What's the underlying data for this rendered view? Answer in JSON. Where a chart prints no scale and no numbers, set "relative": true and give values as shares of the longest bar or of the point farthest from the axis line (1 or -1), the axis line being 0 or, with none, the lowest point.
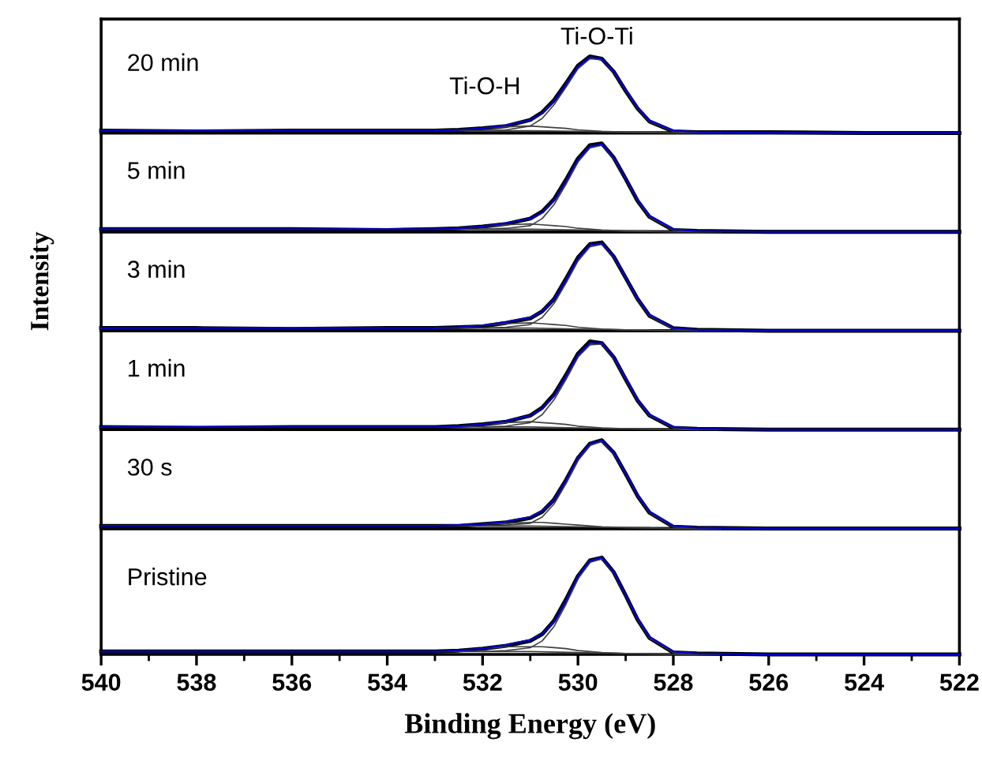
{
  "chart_data": [
    {
      "type": "line",
      "relative": true,
      "title": "20 min",
      "xlim": [
        540,
        522
      ],
      "tick_labels": false,
      "x": [
        540,
        538,
        536,
        534,
        533,
        532.5,
        532,
        531.5,
        531,
        530.75,
        530.5,
        530.25,
        530,
        529.75,
        529.5,
        529.25,
        529,
        528.75,
        528.5,
        528,
        527.5,
        526,
        524,
        522
      ],
      "annotations": [
        "Ti-O-Ti",
        "Ti-O-H"
      ],
      "series": [
        {
          "color": "#0000cc",
          "values": [
            0.03,
            0.03,
            0.03,
            0.03,
            0.03,
            0.04,
            0.06,
            0.1,
            0.17,
            0.26,
            0.42,
            0.64,
            0.87,
            0.99,
            0.97,
            0.8,
            0.56,
            0.33,
            0.16,
            0.03,
            0.01,
            0.0,
            0.0,
            0.0
          ]
        },
        {
          "color": "#000000",
          "values": [
            0.03,
            0.02,
            0.03,
            0.03,
            0.03,
            0.04,
            0.06,
            0.09,
            0.17,
            0.27,
            0.43,
            0.65,
            0.88,
            1.0,
            0.97,
            0.8,
            0.55,
            0.32,
            0.15,
            0.02,
            0.01,
            0.01,
            0.0,
            0.0
          ]
        },
        {
          "color": "#404040",
          "x": [
            532,
            531.5,
            531,
            530.75,
            530.5,
            530.25,
            530,
            529.75,
            529.5,
            529.25,
            529,
            528.75,
            528.5,
            528,
            527.5
          ],
          "values": [
            0.03,
            0.04,
            0.09,
            0.19,
            0.37,
            0.6,
            0.84,
            0.97,
            0.96,
            0.79,
            0.55,
            0.32,
            0.15,
            0.02,
            0.0
          ]
        },
        {
          "color": "#404040",
          "x": [
            533,
            532.5,
            532,
            531.5,
            531,
            530.75,
            530.5,
            530.25,
            530,
            529.5,
            529,
            528.5
          ],
          "values": [
            0.03,
            0.04,
            0.06,
            0.08,
            0.09,
            0.08,
            0.07,
            0.06,
            0.04,
            0.02,
            0.01,
            0.01
          ]
        },
        {
          "color": "#404040",
          "x": [
            533,
            531,
            530,
            529,
            528,
            527
          ],
          "values": [
            0.03,
            0.03,
            0.02,
            0.01,
            0.0,
            0.0
          ]
        }
      ]
    },
    {
      "type": "line",
      "relative": true,
      "title": "5 min",
      "xlim": [
        540,
        522
      ],
      "tick_labels": false,
      "x": [
        540,
        538,
        536,
        534,
        533,
        532.5,
        532,
        531.5,
        531,
        530.75,
        530.5,
        530.25,
        530,
        529.75,
        529.5,
        529.25,
        529,
        528.75,
        528.5,
        528,
        527.5,
        526,
        524,
        522
      ],
      "series": [
        {
          "color": "#0000cc",
          "values": [
            0.03,
            0.03,
            0.03,
            0.03,
            0.03,
            0.04,
            0.06,
            0.1,
            0.15,
            0.22,
            0.36,
            0.58,
            0.82,
            0.97,
            0.99,
            0.84,
            0.6,
            0.36,
            0.18,
            0.03,
            0.01,
            0.0,
            0.0,
            0.0
          ]
        },
        {
          "color": "#000000",
          "values": [
            0.03,
            0.03,
            0.03,
            0.02,
            0.03,
            0.04,
            0.06,
            0.09,
            0.15,
            0.23,
            0.37,
            0.59,
            0.83,
            0.98,
            1.0,
            0.84,
            0.6,
            0.35,
            0.17,
            0.02,
            0.01,
            0.0,
            0.0,
            0.0
          ]
        },
        {
          "color": "#404040",
          "x": [
            532,
            531.5,
            531,
            530.75,
            530.5,
            530.25,
            530,
            529.75,
            529.5,
            529.25,
            529,
            528.75,
            528.5,
            528,
            527.5
          ],
          "values": [
            0.03,
            0.04,
            0.07,
            0.15,
            0.31,
            0.54,
            0.79,
            0.95,
            0.98,
            0.83,
            0.6,
            0.35,
            0.17,
            0.02,
            0.0
          ]
        },
        {
          "color": "#404040",
          "x": [
            533,
            532.5,
            532,
            531.5,
            531,
            530.75,
            530.5,
            530.25,
            530,
            529.5,
            529,
            528.5
          ],
          "values": [
            0.03,
            0.04,
            0.06,
            0.08,
            0.09,
            0.08,
            0.07,
            0.06,
            0.04,
            0.02,
            0.01,
            0.01
          ]
        },
        {
          "color": "#404040",
          "x": [
            533,
            531,
            530,
            529,
            528,
            527
          ],
          "values": [
            0.03,
            0.03,
            0.02,
            0.01,
            0.0,
            0.0
          ]
        }
      ]
    },
    {
      "type": "line",
      "relative": true,
      "title": "3 min",
      "ylabel": "Intensity",
      "xlim": [
        540,
        522
      ],
      "tick_labels": false,
      "x": [
        540,
        538,
        536,
        534,
        533,
        532.5,
        532,
        531.5,
        531,
        530.75,
        530.5,
        530.25,
        530,
        529.75,
        529.5,
        529.25,
        529,
        528.75,
        528.5,
        528,
        527.5,
        526,
        524,
        522
      ],
      "series": [
        {
          "color": "#0000cc",
          "values": [
            0.03,
            0.03,
            0.03,
            0.03,
            0.03,
            0.04,
            0.06,
            0.1,
            0.15,
            0.22,
            0.36,
            0.58,
            0.82,
            0.97,
            0.99,
            0.84,
            0.6,
            0.36,
            0.18,
            0.03,
            0.01,
            0.0,
            0.0,
            0.0
          ]
        },
        {
          "color": "#000000",
          "values": [
            0.03,
            0.03,
            0.02,
            0.03,
            0.03,
            0.04,
            0.05,
            0.09,
            0.14,
            0.22,
            0.36,
            0.59,
            0.83,
            0.98,
            1.0,
            0.84,
            0.6,
            0.36,
            0.17,
            0.03,
            0.01,
            0.0,
            0.0,
            0.0
          ]
        },
        {
          "color": "#404040",
          "x": [
            532,
            531.5,
            531,
            530.75,
            530.5,
            530.25,
            530,
            529.75,
            529.5,
            529.25,
            529,
            528.75,
            528.5,
            528,
            527.5
          ],
          "values": [
            0.03,
            0.04,
            0.07,
            0.15,
            0.31,
            0.54,
            0.79,
            0.95,
            0.98,
            0.83,
            0.6,
            0.35,
            0.17,
            0.02,
            0.0
          ]
        },
        {
          "color": "#404040",
          "x": [
            533,
            532.5,
            532,
            531.5,
            531,
            530.75,
            530.5,
            530.25,
            530,
            529.5,
            529,
            528.5
          ],
          "values": [
            0.03,
            0.04,
            0.06,
            0.08,
            0.09,
            0.08,
            0.07,
            0.06,
            0.04,
            0.02,
            0.01,
            0.01
          ]
        },
        {
          "color": "#404040",
          "x": [
            533,
            531,
            530,
            529,
            528,
            527
          ],
          "values": [
            0.03,
            0.03,
            0.02,
            0.01,
            0.0,
            0.0
          ]
        }
      ]
    },
    {
      "type": "line",
      "relative": true,
      "title": "1 min",
      "xlim": [
        540,
        522
      ],
      "tick_labels": false,
      "x": [
        540,
        538,
        536,
        534,
        533,
        532.5,
        532,
        531.5,
        531,
        530.75,
        530.5,
        530.25,
        530,
        529.75,
        529.5,
        529.25,
        529,
        528.75,
        528.5,
        528,
        527.5,
        526,
        524,
        522
      ],
      "series": [
        {
          "color": "#0000cc",
          "values": [
            0.03,
            0.03,
            0.03,
            0.03,
            0.03,
            0.04,
            0.06,
            0.1,
            0.16,
            0.24,
            0.39,
            0.61,
            0.85,
            0.98,
            0.98,
            0.82,
            0.58,
            0.34,
            0.17,
            0.03,
            0.01,
            0.0,
            0.0,
            0.0
          ]
        },
        {
          "color": "#000000",
          "values": [
            0.03,
            0.02,
            0.03,
            0.03,
            0.03,
            0.04,
            0.06,
            0.09,
            0.16,
            0.25,
            0.4,
            0.62,
            0.86,
            1.0,
            0.98,
            0.82,
            0.57,
            0.33,
            0.16,
            0.02,
            0.01,
            0.0,
            0.0,
            0.0
          ]
        },
        {
          "color": "#404040",
          "x": [
            532,
            531.5,
            531,
            530.75,
            530.5,
            530.25,
            530,
            529.75,
            529.5,
            529.25,
            529,
            528.75,
            528.5,
            528,
            527.5
          ],
          "values": [
            0.03,
            0.04,
            0.08,
            0.17,
            0.34,
            0.57,
            0.82,
            0.96,
            0.97,
            0.81,
            0.57,
            0.33,
            0.16,
            0.02,
            0.0
          ]
        },
        {
          "color": "#404040",
          "x": [
            533,
            532.5,
            532,
            531.5,
            531,
            530.75,
            530.5,
            530.25,
            530,
            529.5,
            529,
            528.5
          ],
          "values": [
            0.03,
            0.04,
            0.06,
            0.08,
            0.09,
            0.08,
            0.07,
            0.06,
            0.04,
            0.02,
            0.01,
            0.01
          ]
        },
        {
          "color": "#404040",
          "x": [
            533,
            531,
            530,
            529,
            528,
            527
          ],
          "values": [
            0.03,
            0.03,
            0.02,
            0.01,
            0.0,
            0.0
          ]
        }
      ]
    },
    {
      "type": "line",
      "relative": true,
      "title": "30 s",
      "xlim": [
        540,
        522
      ],
      "tick_labels": false,
      "x": [
        540,
        538,
        536,
        534,
        533,
        532.5,
        532,
        531.5,
        531,
        530.75,
        530.5,
        530.25,
        530,
        529.75,
        529.5,
        529.25,
        529,
        528.75,
        528.5,
        528,
        527.5,
        526,
        524,
        522
      ],
      "series": [
        {
          "color": "#0000cc",
          "values": [
            0.03,
            0.03,
            0.03,
            0.03,
            0.03,
            0.04,
            0.05,
            0.08,
            0.13,
            0.2,
            0.33,
            0.55,
            0.8,
            0.96,
            1.0,
            0.86,
            0.62,
            0.38,
            0.19,
            0.03,
            0.01,
            0.0,
            0.0,
            0.0
          ]
        },
        {
          "color": "#000000",
          "values": [
            0.03,
            0.03,
            0.03,
            0.03,
            0.03,
            0.03,
            0.05,
            0.07,
            0.12,
            0.19,
            0.33,
            0.55,
            0.8,
            0.96,
            1.0,
            0.86,
            0.62,
            0.37,
            0.18,
            0.02,
            0.01,
            0.0,
            0.0,
            0.0
          ]
        },
        {
          "color": "#404040",
          "x": [
            532,
            531.5,
            531,
            530.75,
            530.5,
            530.25,
            530,
            529.75,
            529.5,
            529.25,
            529,
            528.75,
            528.5,
            528,
            527.5
          ],
          "values": [
            0.03,
            0.04,
            0.06,
            0.13,
            0.28,
            0.51,
            0.77,
            0.94,
            0.99,
            0.85,
            0.62,
            0.37,
            0.18,
            0.02,
            0.0
          ]
        },
        {
          "color": "#404040",
          "x": [
            533,
            532.5,
            532,
            531.5,
            531,
            530.75,
            530.5,
            530.25,
            530,
            529.5,
            529,
            528.5
          ],
          "values": [
            0.03,
            0.03,
            0.05,
            0.06,
            0.07,
            0.07,
            0.06,
            0.05,
            0.04,
            0.02,
            0.01,
            0.01
          ]
        },
        {
          "color": "#404040",
          "x": [
            533,
            531,
            530,
            529,
            528,
            527
          ],
          "values": [
            0.03,
            0.03,
            0.02,
            0.01,
            0.0,
            0.0
          ]
        }
      ]
    },
    {
      "type": "line",
      "relative": true,
      "title": "Pristine",
      "xlabel": "Binding Energy (eV)",
      "xlim": [
        540,
        522
      ],
      "tick_labels": "x",
      "xticks": [
        540,
        {
          "value": 539,
          "label": null
        },
        538,
        {
          "value": 537,
          "label": null
        },
        536,
        {
          "value": 535,
          "label": null
        },
        534,
        {
          "value": 533,
          "label": null
        },
        532,
        {
          "value": 531,
          "label": null
        },
        530,
        {
          "value": 529,
          "label": null
        },
        528,
        {
          "value": 527,
          "label": null
        },
        526,
        {
          "value": 525,
          "label": null
        },
        524,
        {
          "value": 523,
          "label": null
        },
        522
      ],
      "x": [
        540,
        538,
        536,
        534,
        533,
        532.5,
        532,
        531.5,
        531,
        530.75,
        530.5,
        530.25,
        530,
        529.75,
        529.5,
        529.25,
        529,
        528.75,
        528.5,
        528,
        527.5,
        526,
        524,
        522
      ],
      "series": [
        {
          "color": "#0000cc",
          "values": [
            0.03,
            0.03,
            0.03,
            0.03,
            0.03,
            0.04,
            0.06,
            0.1,
            0.15,
            0.21,
            0.34,
            0.56,
            0.81,
            0.97,
            1.0,
            0.85,
            0.61,
            0.37,
            0.18,
            0.03,
            0.01,
            0.0,
            0.0,
            0.0
          ]
        },
        {
          "color": "#000000",
          "values": [
            0.03,
            0.03,
            0.03,
            0.03,
            0.03,
            0.04,
            0.06,
            0.09,
            0.14,
            0.21,
            0.35,
            0.57,
            0.81,
            0.97,
            1.0,
            0.85,
            0.61,
            0.36,
            0.17,
            0.02,
            0.01,
            0.0,
            0.0,
            0.0
          ]
        },
        {
          "color": "#404040",
          "x": [
            532,
            531.5,
            531,
            530.75,
            530.5,
            530.25,
            530,
            529.75,
            529.5,
            529.25,
            529,
            528.75,
            528.5,
            528,
            527.5
          ],
          "values": [
            0.03,
            0.04,
            0.07,
            0.14,
            0.29,
            0.52,
            0.78,
            0.95,
            0.99,
            0.84,
            0.61,
            0.36,
            0.17,
            0.02,
            0.0
          ]
        },
        {
          "color": "#404040",
          "x": [
            533,
            532.5,
            532,
            531.5,
            531,
            530.75,
            530.5,
            530.25,
            530,
            529.5,
            529,
            528.5
          ],
          "values": [
            0.03,
            0.04,
            0.06,
            0.08,
            0.08,
            0.08,
            0.07,
            0.06,
            0.04,
            0.02,
            0.01,
            0.01
          ]
        },
        {
          "color": "#404040",
          "x": [
            533,
            531,
            530,
            529,
            528,
            527
          ],
          "values": [
            0.03,
            0.03,
            0.02,
            0.01,
            0.0,
            0.0
          ]
        }
      ]
    }
  ]
}
